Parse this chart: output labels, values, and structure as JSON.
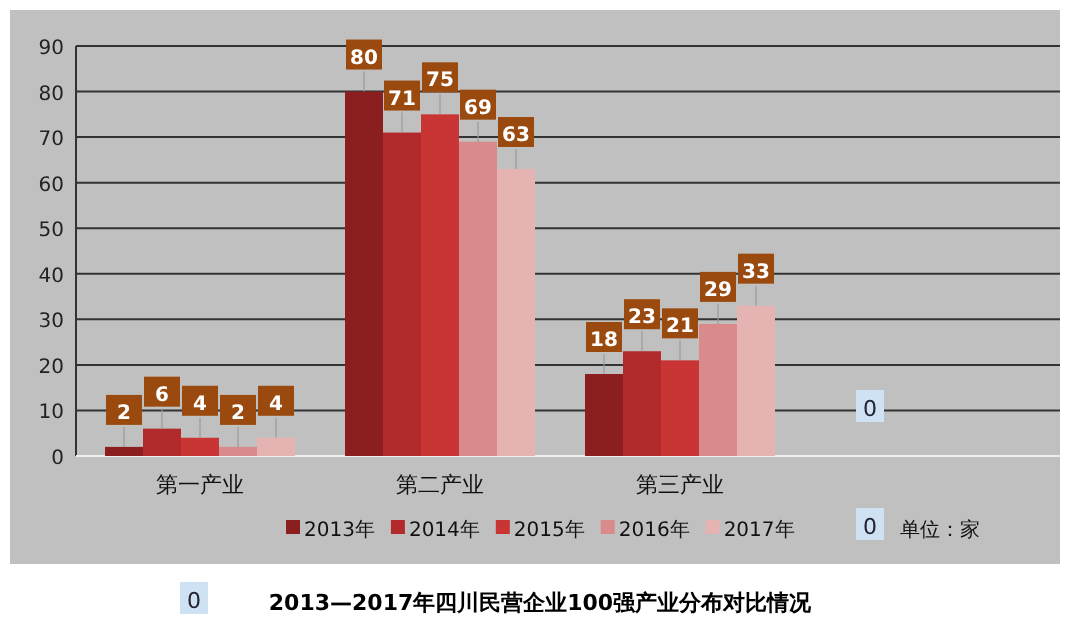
{
  "chart_data": {
    "type": "bar",
    "title": "2013—2017年四川民营企业100强产业分布对比情况",
    "categories": [
      "第一产业",
      "第二产业",
      "第三产业",
      null
    ],
    "series": [
      {
        "name": "2013年",
        "color": "#8b1e1e",
        "values": [
          2,
          80,
          18,
          null
        ]
      },
      {
        "name": "2014年",
        "color": "#b22a2c",
        "values": [
          6,
          71,
          23,
          null
        ]
      },
      {
        "name": "2015年",
        "color": "#c93535",
        "values": [
          4,
          75,
          21,
          null
        ]
      },
      {
        "name": "2016年",
        "color": "#d98a8a",
        "values": [
          2,
          69,
          29,
          null
        ]
      },
      {
        "name": "2017年",
        "color": "#e6b3b3",
        "values": [
          4,
          63,
          33,
          null
        ]
      }
    ],
    "ylim": [
      0,
      90
    ],
    "yticks": [
      0,
      10,
      20,
      30,
      40,
      50,
      60,
      70,
      80,
      90
    ],
    "grid": "y",
    "legend": "bottom",
    "data_labels": true,
    "annotations": [
      "0",
      "0",
      "单位：家",
      "0"
    ]
  }
}
